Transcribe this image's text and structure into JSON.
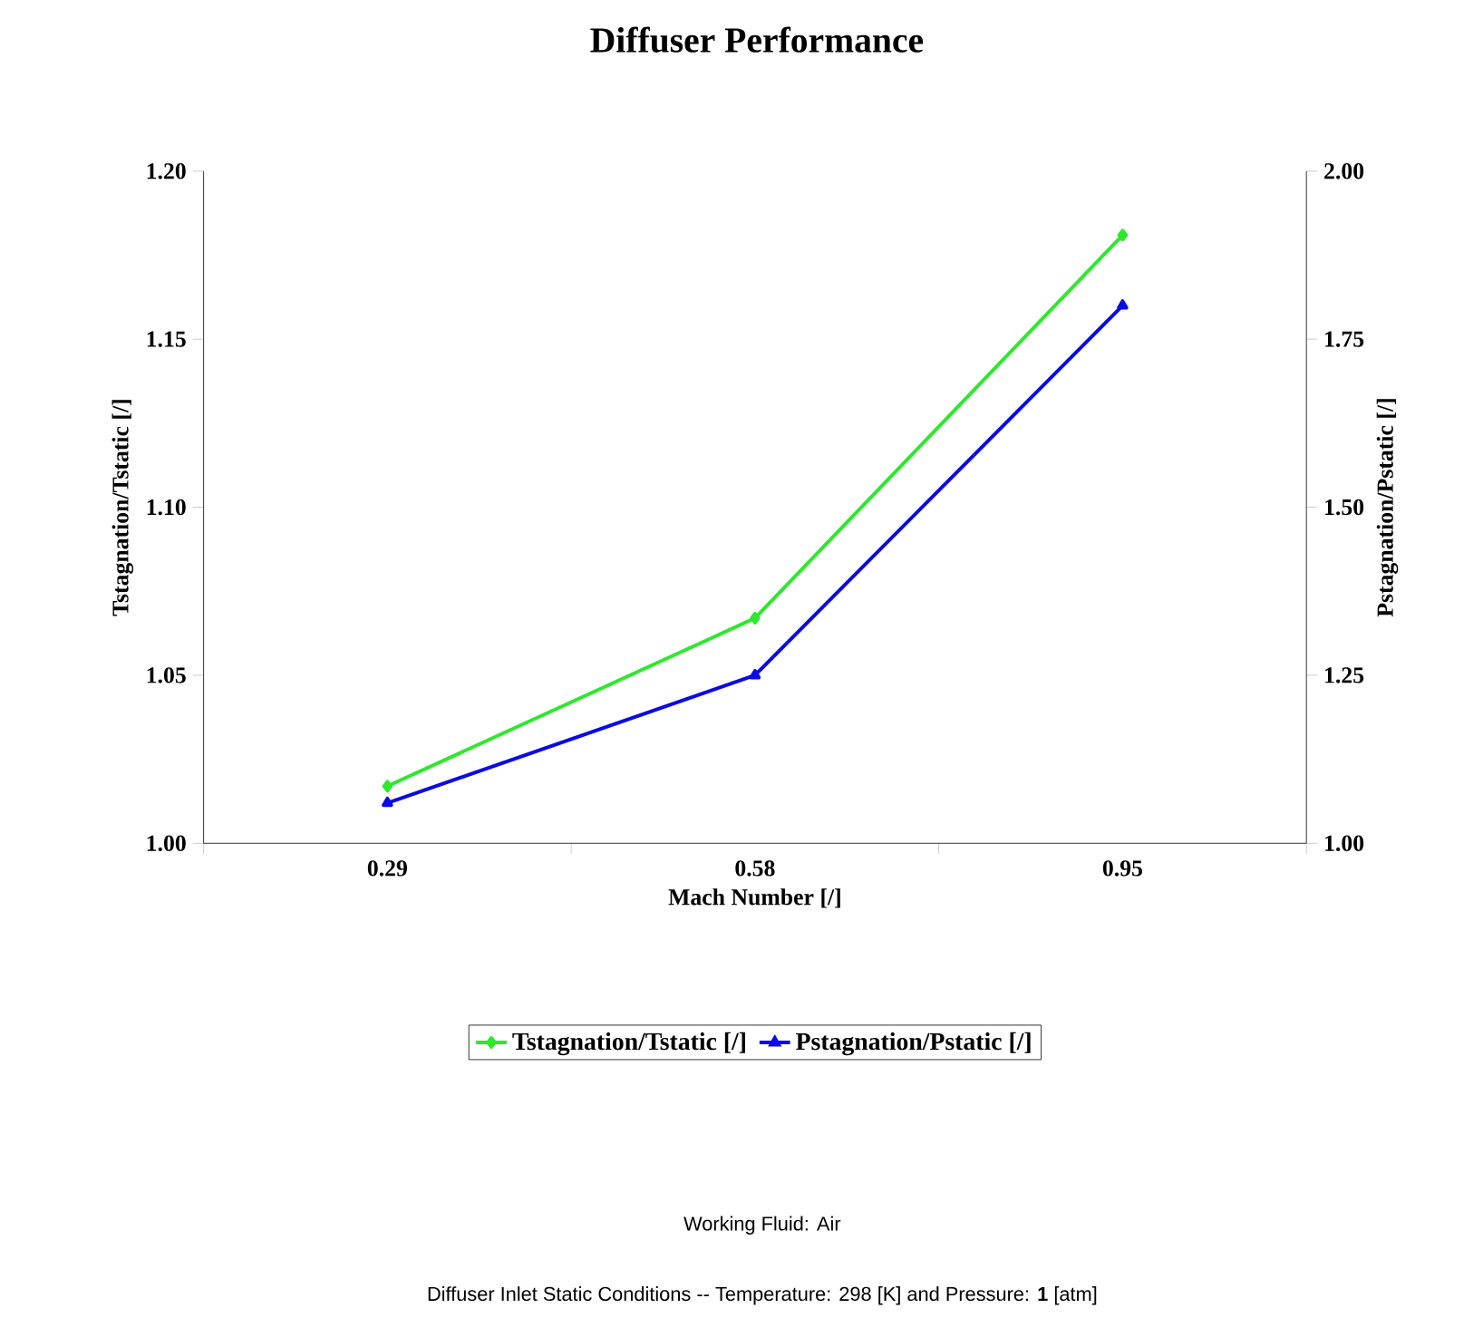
{
  "chart_data": {
    "type": "line",
    "title": "Diffuser Performance",
    "xlabel": "Mach Number [/]",
    "ylabel": "Tstagnation/Tstatic [/]",
    "y2label": "Pstagnation/Pstatic [/]",
    "categories": [
      "0.29",
      "0.58",
      "0.95"
    ],
    "series": [
      {
        "name": "Tstagnation/Tstatic [/]",
        "color": "#2ee82e",
        "values": [
          1.017,
          1.067,
          1.181
        ],
        "marker": "diamond"
      },
      {
        "name": "Pstagnation/Pstatic [/]",
        "color": "#0a0ae6",
        "values": [
          1.06,
          1.25,
          1.8
        ],
        "marker": "triangle",
        "axis": "y2"
      }
    ],
    "ylim": [
      1.0,
      1.2
    ],
    "yticks": [
      {
        "value": 1.0,
        "label": "1.00"
      },
      {
        "value": 1.05,
        "label": "1.05"
      },
      {
        "value": 1.1,
        "label": "1.10"
      },
      {
        "value": 1.15,
        "label": "1.15"
      },
      {
        "value": 1.2,
        "label": "1.20"
      }
    ],
    "y2lim": [
      1.0,
      2.0
    ],
    "y2ticks": [
      {
        "value": 1.0,
        "label": "1.00"
      },
      {
        "value": 1.25,
        "label": "1.25"
      },
      {
        "value": 1.5,
        "label": "1.50"
      },
      {
        "value": 1.75,
        "label": "1.75"
      },
      {
        "value": 2.0,
        "label": "2.00"
      }
    ],
    "grid": false,
    "legend": "bottom",
    "line_style": "solid",
    "annotations": [
      "Working Fluid:  Air",
      "Diffuser Inlet Static Conditions  --  Temperature:  298 [K] and Pressure:  **1** [atm]"
    ]
  }
}
